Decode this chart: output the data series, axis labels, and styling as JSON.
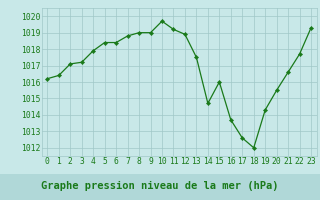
{
  "x": [
    0,
    1,
    2,
    3,
    4,
    5,
    6,
    7,
    8,
    9,
    10,
    11,
    12,
    13,
    14,
    15,
    16,
    17,
    18,
    19,
    20,
    21,
    22,
    23
  ],
  "y": [
    1016.2,
    1016.4,
    1017.1,
    1017.2,
    1017.9,
    1018.4,
    1018.4,
    1018.8,
    1019.0,
    1019.0,
    1019.7,
    1019.2,
    1018.9,
    1017.5,
    1014.7,
    1016.0,
    1013.7,
    1012.6,
    1012.0,
    1014.3,
    1015.5,
    1016.6,
    1017.7,
    1019.3
  ],
  "line_color": "#1a7a1a",
  "marker_color": "#1a7a1a",
  "bg_color": "#c8e8e8",
  "grid_color": "#a0c8c8",
  "xlabel": "Graphe pression niveau de la mer (hPa)",
  "ylabel_ticks": [
    1012,
    1013,
    1014,
    1015,
    1016,
    1017,
    1018,
    1019,
    1020
  ],
  "xlim": [
    -0.5,
    23.5
  ],
  "ylim": [
    1011.5,
    1020.5
  ],
  "tick_label_color": "#1a7a1a",
  "tick_fontsize": 5.8,
  "xlabel_fontsize": 7.5,
  "label_band_color": "#b0d8d8"
}
